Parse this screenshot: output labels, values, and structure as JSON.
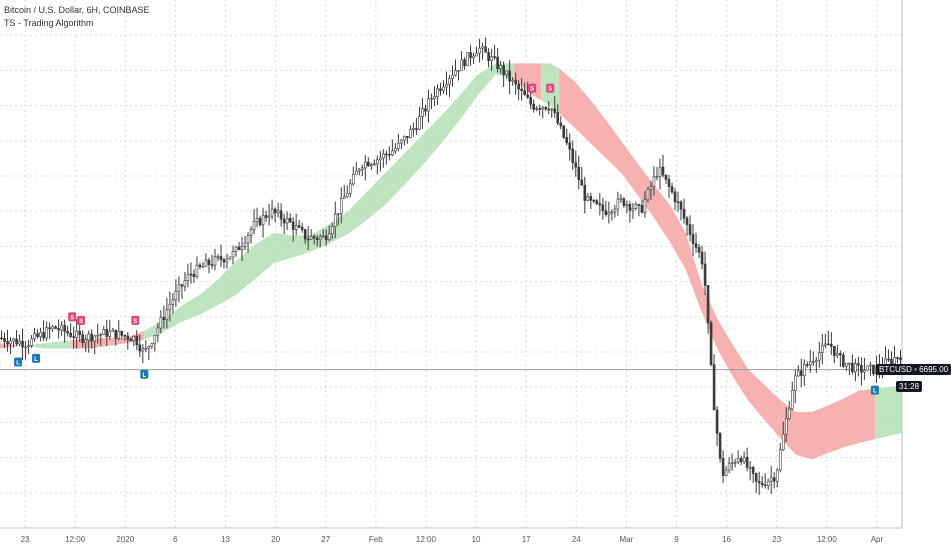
{
  "header": {
    "symbol_line": "Bitcoin / U.S. Dollar, 6H, COINBASE",
    "indicator_line": "TS - Trading Algorithm"
  },
  "price_tags": {
    "symbol": "BTCUSD",
    "price": "6695.00",
    "countdown": "31:28"
  },
  "colors": {
    "band_bull": "#b7e1b9",
    "band_bear": "#f7a9a8",
    "candle": "#3a3a3a",
    "signal_long": "#1f77b4",
    "signal_short": "#e0457b",
    "grid": "#d9d9d9",
    "hline": "#9e9e9e"
  },
  "chart_data": {
    "type": "candlestick",
    "x_ticks": [
      "23",
      "12:00",
      "2020",
      "6",
      "13",
      "20",
      "27",
      "Feb",
      "12:00",
      "10",
      "17",
      "24",
      "Mar",
      "9",
      "16",
      "23",
      "12:00",
      "Apr"
    ],
    "close_path": [
      [
        0.0,
        0.36
      ],
      [
        0.03,
        0.35
      ],
      [
        0.06,
        0.38
      ],
      [
        0.09,
        0.36
      ],
      [
        0.12,
        0.37
      ],
      [
        0.15,
        0.36
      ],
      [
        0.16,
        0.33
      ],
      [
        0.19,
        0.43
      ],
      [
        0.21,
        0.48
      ],
      [
        0.23,
        0.5
      ],
      [
        0.26,
        0.52
      ],
      [
        0.28,
        0.57
      ],
      [
        0.3,
        0.6
      ],
      [
        0.32,
        0.58
      ],
      [
        0.34,
        0.55
      ],
      [
        0.36,
        0.55
      ],
      [
        0.38,
        0.62
      ],
      [
        0.4,
        0.69
      ],
      [
        0.42,
        0.7
      ],
      [
        0.44,
        0.72
      ],
      [
        0.46,
        0.76
      ],
      [
        0.48,
        0.82
      ],
      [
        0.5,
        0.86
      ],
      [
        0.53,
        0.91
      ],
      [
        0.55,
        0.88
      ],
      [
        0.57,
        0.84
      ],
      [
        0.59,
        0.8
      ],
      [
        0.61,
        0.8
      ],
      [
        0.63,
        0.72
      ],
      [
        0.65,
        0.62
      ],
      [
        0.67,
        0.6
      ],
      [
        0.69,
        0.62
      ],
      [
        0.71,
        0.6
      ],
      [
        0.73,
        0.68
      ],
      [
        0.75,
        0.62
      ],
      [
        0.77,
        0.54
      ],
      [
        0.78,
        0.5
      ],
      [
        0.79,
        0.26
      ],
      [
        0.8,
        0.1
      ],
      [
        0.82,
        0.14
      ],
      [
        0.84,
        0.08
      ],
      [
        0.86,
        0.1
      ],
      [
        0.88,
        0.28
      ],
      [
        0.9,
        0.32
      ],
      [
        0.92,
        0.35
      ],
      [
        0.93,
        0.32
      ],
      [
        0.95,
        0.3
      ],
      [
        0.97,
        0.3
      ],
      [
        1.0,
        0.33
      ]
    ],
    "band_upper": [
      [
        0.0,
        0.34
      ],
      [
        0.05,
        0.35
      ],
      [
        0.1,
        0.36
      ],
      [
        0.14,
        0.36
      ],
      [
        0.17,
        0.38
      ],
      [
        0.2,
        0.42
      ],
      [
        0.23,
        0.45
      ],
      [
        0.27,
        0.52
      ],
      [
        0.3,
        0.56
      ],
      [
        0.34,
        0.55
      ],
      [
        0.38,
        0.59
      ],
      [
        0.42,
        0.66
      ],
      [
        0.46,
        0.73
      ],
      [
        0.5,
        0.8
      ],
      [
        0.53,
        0.86
      ],
      [
        0.55,
        0.88
      ],
      [
        0.57,
        0.88
      ],
      [
        0.59,
        0.88
      ],
      [
        0.61,
        0.88
      ],
      [
        0.63,
        0.86
      ],
      [
        0.66,
        0.8
      ],
      [
        0.69,
        0.73
      ],
      [
        0.72,
        0.66
      ],
      [
        0.74,
        0.62
      ],
      [
        0.76,
        0.56
      ],
      [
        0.78,
        0.45
      ],
      [
        0.8,
        0.38
      ],
      [
        0.83,
        0.3
      ],
      [
        0.86,
        0.25
      ],
      [
        0.88,
        0.22
      ],
      [
        0.9,
        0.22
      ],
      [
        0.93,
        0.24
      ],
      [
        0.95,
        0.26
      ],
      [
        1.0,
        0.27
      ]
    ],
    "band_lower": [
      [
        0.0,
        0.35
      ],
      [
        0.05,
        0.34
      ],
      [
        0.1,
        0.34
      ],
      [
        0.14,
        0.35
      ],
      [
        0.17,
        0.36
      ],
      [
        0.2,
        0.39
      ],
      [
        0.23,
        0.41
      ],
      [
        0.27,
        0.45
      ],
      [
        0.3,
        0.5
      ],
      [
        0.34,
        0.52
      ],
      [
        0.38,
        0.55
      ],
      [
        0.42,
        0.6
      ],
      [
        0.46,
        0.67
      ],
      [
        0.5,
        0.75
      ],
      [
        0.53,
        0.82
      ],
      [
        0.55,
        0.86
      ],
      [
        0.57,
        0.85
      ],
      [
        0.59,
        0.82
      ],
      [
        0.61,
        0.8
      ],
      [
        0.63,
        0.77
      ],
      [
        0.66,
        0.72
      ],
      [
        0.69,
        0.67
      ],
      [
        0.72,
        0.6
      ],
      [
        0.74,
        0.55
      ],
      [
        0.76,
        0.49
      ],
      [
        0.78,
        0.4
      ],
      [
        0.8,
        0.32
      ],
      [
        0.83,
        0.24
      ],
      [
        0.86,
        0.18
      ],
      [
        0.88,
        0.14
      ],
      [
        0.9,
        0.13
      ],
      [
        0.93,
        0.15
      ],
      [
        0.95,
        0.16
      ],
      [
        1.0,
        0.18
      ]
    ],
    "band_regimes": [
      {
        "from": 0.0,
        "to": 0.02,
        "trend": "bear"
      },
      {
        "from": 0.02,
        "to": 0.08,
        "trend": "bull"
      },
      {
        "from": 0.08,
        "to": 0.16,
        "trend": "bear"
      },
      {
        "from": 0.16,
        "to": 0.57,
        "trend": "bull"
      },
      {
        "from": 0.57,
        "to": 0.6,
        "trend": "bear"
      },
      {
        "from": 0.6,
        "to": 0.62,
        "trend": "bull"
      },
      {
        "from": 0.62,
        "to": 0.97,
        "trend": "bear"
      },
      {
        "from": 0.97,
        "to": 1.0,
        "trend": "bull"
      }
    ],
    "signals": [
      {
        "t": 0.02,
        "type": "long",
        "label": "L"
      },
      {
        "t": 0.04,
        "type": "long",
        "label": "L"
      },
      {
        "t": 0.08,
        "type": "short",
        "label": "S"
      },
      {
        "t": 0.09,
        "type": "short",
        "label": "S"
      },
      {
        "t": 0.15,
        "type": "short",
        "label": "S"
      },
      {
        "t": 0.16,
        "type": "long",
        "label": "L"
      },
      {
        "t": 0.59,
        "type": "short",
        "label": "S"
      },
      {
        "t": 0.61,
        "type": "short",
        "label": "S"
      },
      {
        "t": 0.97,
        "type": "long",
        "label": "L"
      }
    ],
    "price_level": 0.3,
    "grid": true
  }
}
